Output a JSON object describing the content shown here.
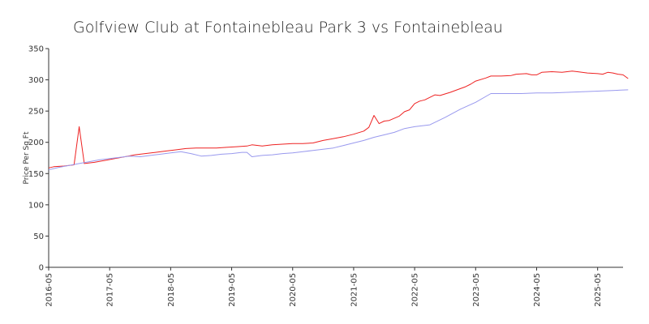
{
  "chart_data": {
    "type": "line",
    "title": "Golfview Club at Fontainebleau Park 3 vs Fontainebleau",
    "xlabel": "",
    "ylabel": "Price Per Sq Ft",
    "ylim": [
      0,
      350
    ],
    "y_ticks": [
      0,
      50,
      100,
      150,
      200,
      250,
      300,
      350
    ],
    "y_tick_labels": [
      "0",
      "50",
      "100",
      "150",
      "200",
      "250",
      "300",
      "350"
    ],
    "xlim": [
      "2016-05",
      "2025-10"
    ],
    "x_ticks": [
      "2016-05",
      "2017-05",
      "2018-05",
      "2019-05",
      "2020-05",
      "2021-05",
      "2022-05",
      "2023-05",
      "2024-05",
      "2025-05"
    ],
    "x_tick_labels": [
      "2016-05",
      "2017-05",
      "2018-05",
      "2019-05",
      "2020-05",
      "2021-05",
      "2022-05",
      "2023-05",
      "2024-05",
      "2025-05"
    ],
    "grid": false,
    "legend": "none",
    "series": [
      {
        "color": "#ee2222",
        "points": [
          [
            "2016-05",
            159
          ],
          [
            "2016-06",
            161
          ],
          [
            "2016-08",
            162
          ],
          [
            "2016-10",
            164
          ],
          [
            "2016-09",
            163
          ],
          [
            "2016-10",
            164
          ],
          [
            "2016-11",
            225
          ],
          [
            "2016-12",
            166
          ],
          [
            "2017-02",
            168
          ],
          [
            "2017-04",
            171
          ],
          [
            "2017-06",
            174
          ],
          [
            "2017-08",
            177
          ],
          [
            "2017-10",
            180
          ],
          [
            "2017-12",
            182
          ],
          [
            "2018-02",
            184
          ],
          [
            "2018-04",
            186
          ],
          [
            "2018-06",
            188
          ],
          [
            "2018-08",
            190
          ],
          [
            "2018-10",
            191
          ],
          [
            "2018-12",
            191
          ],
          [
            "2019-02",
            191
          ],
          [
            "2019-04",
            192
          ],
          [
            "2019-06",
            193
          ],
          [
            "2019-08",
            194
          ],
          [
            "2019-09",
            196
          ],
          [
            "2019-11",
            194
          ],
          [
            "2020-01",
            196
          ],
          [
            "2020-03",
            197
          ],
          [
            "2020-05",
            198
          ],
          [
            "2020-07",
            198
          ],
          [
            "2020-09",
            199
          ],
          [
            "2020-11",
            203
          ],
          [
            "2021-01",
            206
          ],
          [
            "2021-03",
            209
          ],
          [
            "2021-05",
            213
          ],
          [
            "2021-07",
            218
          ],
          [
            "2021-08",
            224
          ],
          [
            "2021-09",
            243
          ],
          [
            "2021-10",
            230
          ],
          [
            "2021-11",
            234
          ],
          [
            "2021-12",
            235
          ],
          [
            "2022-02",
            242
          ],
          [
            "2022-03",
            249
          ],
          [
            "2022-04",
            252
          ],
          [
            "2022-05",
            262
          ],
          [
            "2022-06",
            266
          ],
          [
            "2022-07",
            268
          ],
          [
            "2022-08",
            272
          ],
          [
            "2022-09",
            276
          ],
          [
            "2022-10",
            275
          ],
          [
            "2022-12",
            280
          ],
          [
            "2023-02",
            286
          ],
          [
            "2023-03",
            289
          ],
          [
            "2023-04",
            293
          ],
          [
            "2023-05",
            298
          ],
          [
            "2023-07",
            303
          ],
          [
            "2023-08",
            306
          ],
          [
            "2023-10",
            306
          ],
          [
            "2023-12",
            307
          ],
          [
            "2024-01",
            309
          ],
          [
            "2024-03",
            310
          ],
          [
            "2024-04",
            308
          ],
          [
            "2024-05",
            308
          ],
          [
            "2024-06",
            312
          ],
          [
            "2024-08",
            313
          ],
          [
            "2024-10",
            312
          ],
          [
            "2024-12",
            314
          ],
          [
            "2025-01",
            313
          ],
          [
            "2025-03",
            311
          ],
          [
            "2025-05",
            310
          ],
          [
            "2025-06",
            309
          ],
          [
            "2025-07",
            312
          ],
          [
            "2025-08",
            311
          ],
          [
            "2025-09",
            309
          ],
          [
            "2025-10",
            308
          ],
          [
            "2025-11",
            302
          ]
        ]
      },
      {
        "color": "#9999ee",
        "points": [
          [
            "2016-05",
            156
          ],
          [
            "2016-07",
            160
          ],
          [
            "2016-09",
            163
          ],
          [
            "2016-11",
            166
          ],
          [
            "2017-01",
            169
          ],
          [
            "2017-03",
            172
          ],
          [
            "2017-05",
            174
          ],
          [
            "2017-07",
            176
          ],
          [
            "2017-09",
            178
          ],
          [
            "2017-11",
            177
          ],
          [
            "2018-01",
            179
          ],
          [
            "2018-03",
            181
          ],
          [
            "2018-05",
            183
          ],
          [
            "2018-07",
            185
          ],
          [
            "2018-09",
            182
          ],
          [
            "2018-11",
            178
          ],
          [
            "2019-01",
            179
          ],
          [
            "2019-03",
            181
          ],
          [
            "2019-05",
            182
          ],
          [
            "2019-07",
            184
          ],
          [
            "2019-08",
            184
          ],
          [
            "2019-09",
            177
          ],
          [
            "2019-11",
            179
          ],
          [
            "2020-01",
            180
          ],
          [
            "2020-03",
            182
          ],
          [
            "2020-05",
            183
          ],
          [
            "2020-07",
            185
          ],
          [
            "2020-09",
            187
          ],
          [
            "2020-11",
            189
          ],
          [
            "2021-01",
            191
          ],
          [
            "2021-03",
            195
          ],
          [
            "2021-05",
            199
          ],
          [
            "2021-07",
            203
          ],
          [
            "2021-09",
            208
          ],
          [
            "2021-11",
            212
          ],
          [
            "2022-01",
            216
          ],
          [
            "2022-03",
            222
          ],
          [
            "2022-05",
            225
          ],
          [
            "2022-08",
            228
          ],
          [
            "2022-11",
            240
          ],
          [
            "2023-02",
            253
          ],
          [
            "2023-05",
            264
          ],
          [
            "2023-08",
            278
          ],
          [
            "2023-11",
            278
          ],
          [
            "2024-02",
            278
          ],
          [
            "2024-05",
            279
          ],
          [
            "2024-08",
            279
          ],
          [
            "2024-11",
            280
          ],
          [
            "2025-02",
            281
          ],
          [
            "2025-05",
            282
          ],
          [
            "2025-08",
            283
          ],
          [
            "2025-11",
            284
          ]
        ]
      }
    ]
  }
}
